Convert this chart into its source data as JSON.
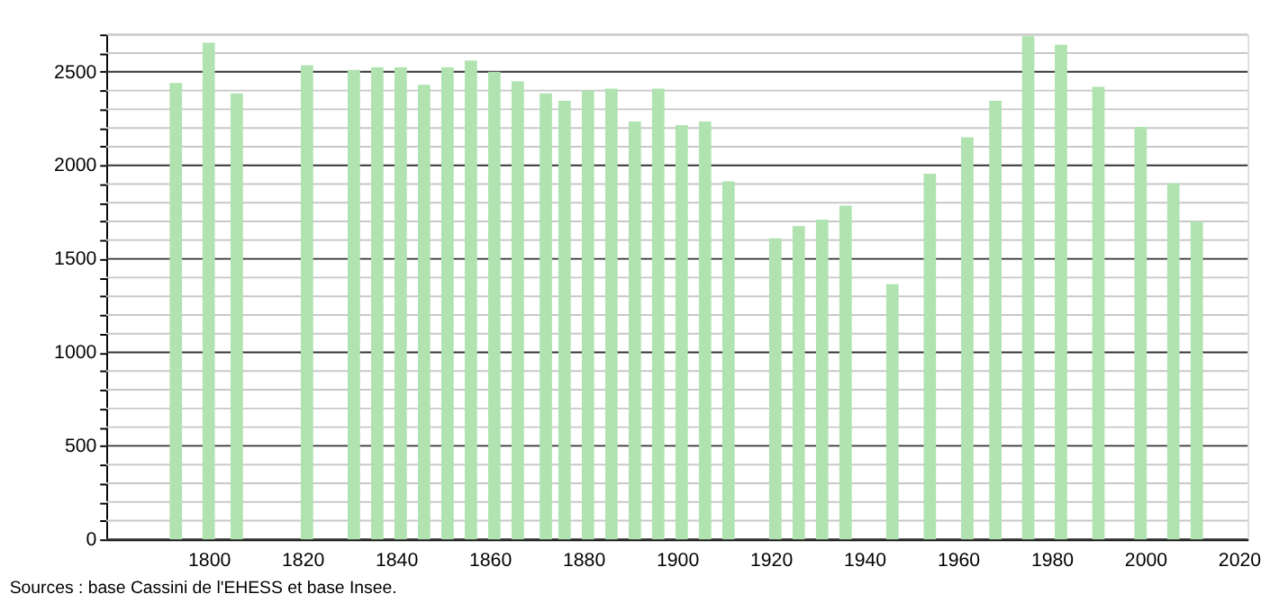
{
  "chart_data": {
    "type": "bar",
    "color": "#b0e3b0",
    "x": [
      1793,
      1800,
      1806,
      1821,
      1831,
      1836,
      1841,
      1846,
      1851,
      1856,
      1861,
      1866,
      1872,
      1876,
      1881,
      1886,
      1891,
      1896,
      1901,
      1906,
      1911,
      1921,
      1926,
      1931,
      1936,
      1946,
      1954,
      1962,
      1968,
      1975,
      1982,
      1990,
      1999,
      2006,
      2011
    ],
    "values": [
      2440,
      2655,
      2385,
      2535,
      2510,
      2525,
      2525,
      2430,
      2525,
      2560,
      2500,
      2450,
      2385,
      2345,
      2400,
      2410,
      2235,
      2410,
      2215,
      2235,
      1915,
      1610,
      1675,
      1710,
      1785,
      1365,
      1955,
      2150,
      2345,
      2690,
      2645,
      2420,
      2205,
      1905,
      1700
    ],
    "xlim": [
      1780,
      2020
    ],
    "xticks": [
      1800,
      1820,
      1840,
      1860,
      1880,
      1900,
      1920,
      1940,
      1960,
      1980,
      2000,
      2020
    ],
    "ylim": [
      0,
      2700
    ],
    "yticks": [
      0,
      {
        "value": 100,
        "label": null
      },
      {
        "value": 200,
        "label": null
      },
      {
        "value": 300,
        "label": null
      },
      {
        "value": 400,
        "label": null
      },
      500,
      {
        "value": 600,
        "label": null
      },
      {
        "value": 700,
        "label": null
      },
      {
        "value": 800,
        "label": null
      },
      {
        "value": 900,
        "label": null
      },
      1000,
      {
        "value": 1100,
        "label": null
      },
      {
        "value": 1200,
        "label": null
      },
      {
        "value": 1300,
        "label": null
      },
      {
        "value": 1400,
        "label": null
      },
      1500,
      {
        "value": 1600,
        "label": null
      },
      {
        "value": 1700,
        "label": null
      },
      {
        "value": 1800,
        "label": null
      },
      {
        "value": 1900,
        "label": null
      },
      2000,
      {
        "value": 2100,
        "label": null
      },
      {
        "value": 2200,
        "label": null
      },
      {
        "value": 2300,
        "label": null
      },
      {
        "value": 2400,
        "label": null
      },
      2500,
      {
        "value": 2600,
        "label": null
      },
      {
        "value": 2700,
        "label": null
      }
    ],
    "grid": "y",
    "annotations": [
      "Sources : base Cassini de l'EHESS et base Insee."
    ]
  }
}
